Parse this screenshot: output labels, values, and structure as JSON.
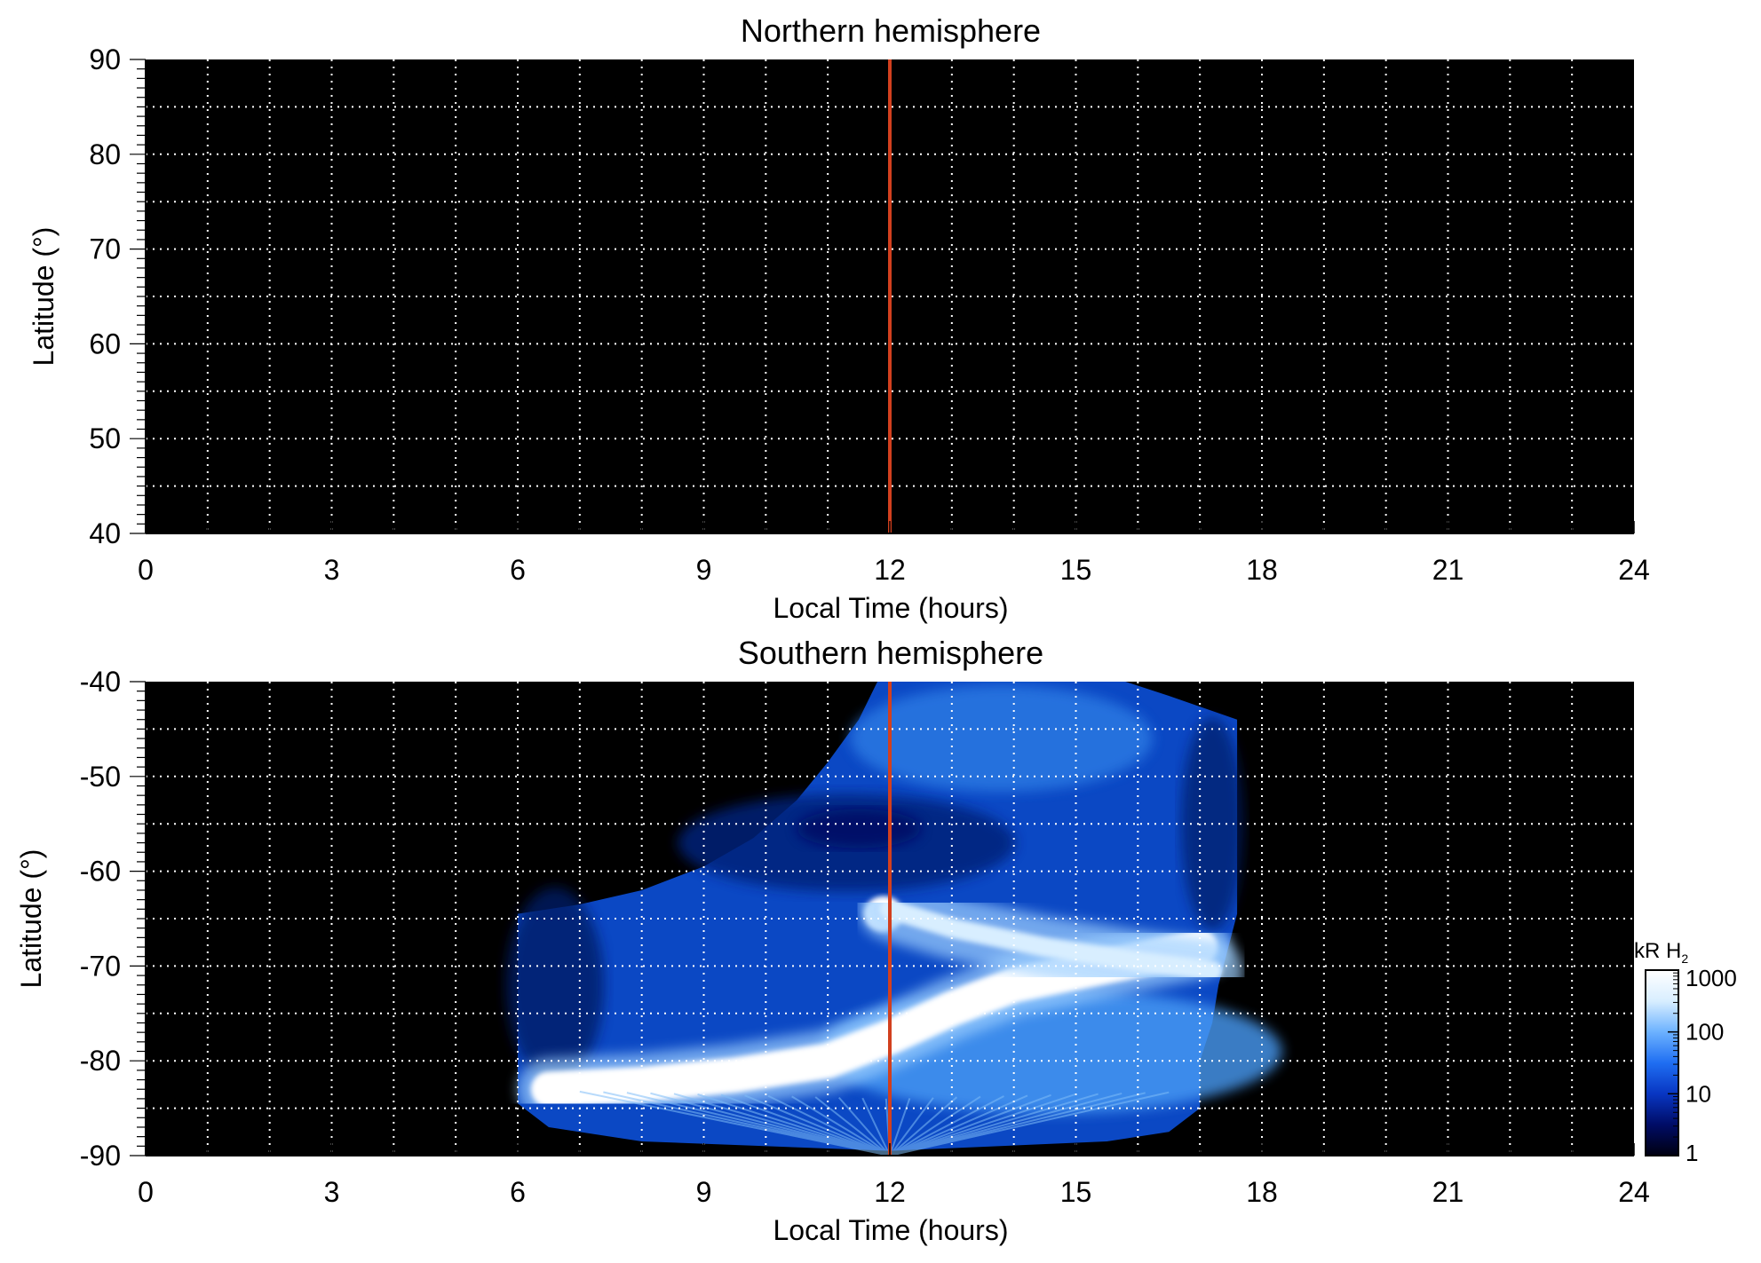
{
  "chart_data": [
    {
      "type": "heatmap",
      "title": "Northern hemisphere",
      "xlabel": "Local Time (hours)",
      "ylabel": "Latitude (°)",
      "xlim": [
        0,
        24
      ],
      "ylim": [
        40,
        90
      ],
      "x_ticks": [
        0,
        3,
        6,
        9,
        12,
        15,
        18,
        21,
        24
      ],
      "y_ticks": [
        40,
        50,
        60,
        70,
        80,
        90
      ],
      "grid": true,
      "grid_style": "dotted white",
      "reference_line": {
        "x": 12,
        "color": "#d2401e"
      },
      "background_color": "#000000",
      "emission_region": null
    },
    {
      "type": "heatmap",
      "title": "Southern hemisphere",
      "xlabel": "Local Time (hours)",
      "ylabel": "Latitude (°)",
      "xlim": [
        0,
        24
      ],
      "ylim": [
        -90,
        -40
      ],
      "x_ticks": [
        0,
        3,
        6,
        9,
        12,
        15,
        18,
        21,
        24
      ],
      "y_ticks": [
        -40,
        -50,
        -60,
        -70,
        -80,
        -90
      ],
      "grid": true,
      "grid_style": "dotted white",
      "reference_line": {
        "x": 12,
        "color": "#d2401e"
      },
      "background_color": "#000000",
      "emission_region": {
        "boundary": [
          [
            6.0,
            -64.5
          ],
          [
            7.0,
            -63.5
          ],
          [
            8.0,
            -62.0
          ],
          [
            9.0,
            -59.5
          ],
          [
            9.8,
            -56.5
          ],
          [
            10.5,
            -52.5
          ],
          [
            11.0,
            -48.5
          ],
          [
            11.5,
            -44.0
          ],
          [
            11.8,
            -40.0
          ],
          [
            15.8,
            -40.0
          ],
          [
            16.5,
            -41.5
          ],
          [
            17.6,
            -44.0
          ],
          [
            17.6,
            -64.5
          ],
          [
            17.3,
            -72.0
          ],
          [
            17.2,
            -76.0
          ],
          [
            17.0,
            -80.0
          ],
          [
            17.0,
            -85.0
          ],
          [
            16.5,
            -87.5
          ],
          [
            15.5,
            -88.5
          ],
          [
            12.0,
            -89.5
          ],
          [
            8.0,
            -88.5
          ],
          [
            6.5,
            -87.0
          ],
          [
            6.0,
            -84.5
          ],
          [
            6.0,
            -64.5
          ]
        ],
        "bright_features": [
          {
            "name": "main auroral oval",
            "centerline": [
              [
                6.5,
                -83.0
              ],
              [
                8.0,
                -82.5
              ],
              [
                9.5,
                -81.5
              ],
              [
                11.0,
                -80.0
              ],
              [
                12.0,
                -77.5
              ],
              [
                13.0,
                -74.5
              ],
              [
                14.0,
                -72.0
              ],
              [
                15.5,
                -70.0
              ],
              [
                17.0,
                -68.0
              ]
            ],
            "level_kR": 1000
          },
          {
            "name": "cusp spot",
            "x": 11.9,
            "y": -64.5,
            "level_kR": 1000
          },
          {
            "name": "dusk arc",
            "centerline": [
              [
                12.0,
                -64.0
              ],
              [
                13.0,
                -66.0
              ],
              [
                14.5,
                -68.0
              ],
              [
                16.0,
                -69.5
              ],
              [
                17.2,
                -70.5
              ]
            ],
            "level_kR": 300
          }
        ],
        "dim_features": [
          {
            "name": "low-emission patch",
            "x": 11.5,
            "y": -55.5,
            "level_kR": 3
          }
        ]
      }
    }
  ],
  "colorbar": {
    "label_main": "kR H",
    "label_sub": "2",
    "scale": "log",
    "range": [
      1,
      1000
    ],
    "ticks": [
      "1000",
      "100",
      "10",
      "1"
    ],
    "colors": [
      "#000010",
      "#000c66",
      "#0836c2",
      "#1f6ef2",
      "#6cb2ff",
      "#d8eeff",
      "#ffffff"
    ]
  }
}
